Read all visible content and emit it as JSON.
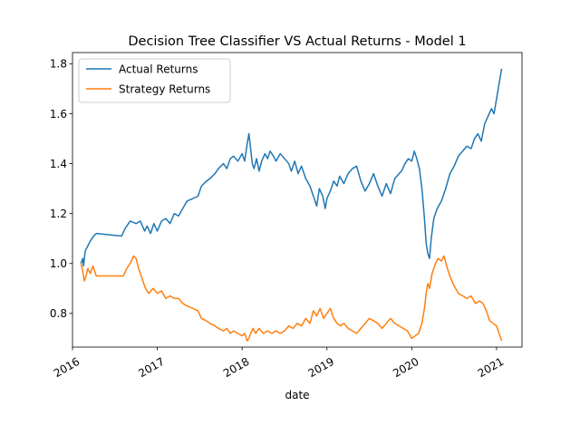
{
  "chart_data": {
    "type": "line",
    "title": "Decision Tree Classifier VS Actual Returns - Model 1",
    "xlabel": "date",
    "ylabel": "",
    "xlim": [
      2016.0,
      2021.3
    ],
    "ylim": [
      0.665,
      1.845
    ],
    "xticks": [
      {
        "value": 2016,
        "label": "2016"
      },
      {
        "value": 2017,
        "label": "2017"
      },
      {
        "value": 2018,
        "label": "2018"
      },
      {
        "value": 2019,
        "label": "2019"
      },
      {
        "value": 2020,
        "label": "2020"
      },
      {
        "value": 2021,
        "label": "2021"
      }
    ],
    "yticks": [
      {
        "value": 0.8,
        "label": "0.8"
      },
      {
        "value": 1.0,
        "label": "1.0"
      },
      {
        "value": 1.2,
        "label": "1.2"
      },
      {
        "value": 1.4,
        "label": "1.4"
      },
      {
        "value": 1.6,
        "label": "1.6"
      },
      {
        "value": 1.8,
        "label": "1.8"
      }
    ],
    "legend_position": "upper-left",
    "series": [
      {
        "name": "Actual Returns",
        "color": "#1f77b4",
        "points": [
          [
            2016.1,
            1.0
          ],
          [
            2016.12,
            1.02
          ],
          [
            2016.13,
            0.99
          ],
          [
            2016.15,
            1.05
          ],
          [
            2016.18,
            1.07
          ],
          [
            2016.21,
            1.09
          ],
          [
            2016.25,
            1.11
          ],
          [
            2016.28,
            1.12
          ],
          [
            2016.58,
            1.11
          ],
          [
            2016.62,
            1.14
          ],
          [
            2016.68,
            1.17
          ],
          [
            2016.75,
            1.16
          ],
          [
            2016.8,
            1.17
          ],
          [
            2016.85,
            1.13
          ],
          [
            2016.88,
            1.15
          ],
          [
            2016.92,
            1.12
          ],
          [
            2016.96,
            1.16
          ],
          [
            2017.0,
            1.13
          ],
          [
            2017.05,
            1.17
          ],
          [
            2017.1,
            1.18
          ],
          [
            2017.15,
            1.16
          ],
          [
            2017.2,
            1.2
          ],
          [
            2017.25,
            1.19
          ],
          [
            2017.3,
            1.22
          ],
          [
            2017.35,
            1.25
          ],
          [
            2017.42,
            1.26
          ],
          [
            2017.48,
            1.27
          ],
          [
            2017.52,
            1.31
          ],
          [
            2017.58,
            1.33
          ],
          [
            2017.62,
            1.34
          ],
          [
            2017.68,
            1.36
          ],
          [
            2017.72,
            1.38
          ],
          [
            2017.78,
            1.4
          ],
          [
            2017.82,
            1.38
          ],
          [
            2017.86,
            1.42
          ],
          [
            2017.9,
            1.43
          ],
          [
            2017.95,
            1.41
          ],
          [
            2018.0,
            1.44
          ],
          [
            2018.03,
            1.41
          ],
          [
            2018.06,
            1.48
          ],
          [
            2018.08,
            1.52
          ],
          [
            2018.1,
            1.46
          ],
          [
            2018.12,
            1.4
          ],
          [
            2018.14,
            1.38
          ],
          [
            2018.17,
            1.42
          ],
          [
            2018.2,
            1.37
          ],
          [
            2018.23,
            1.41
          ],
          [
            2018.27,
            1.44
          ],
          [
            2018.3,
            1.42
          ],
          [
            2018.33,
            1.45
          ],
          [
            2018.37,
            1.43
          ],
          [
            2018.4,
            1.41
          ],
          [
            2018.45,
            1.44
          ],
          [
            2018.5,
            1.42
          ],
          [
            2018.55,
            1.4
          ],
          [
            2018.58,
            1.37
          ],
          [
            2018.62,
            1.41
          ],
          [
            2018.66,
            1.36
          ],
          [
            2018.7,
            1.39
          ],
          [
            2018.75,
            1.34
          ],
          [
            2018.8,
            1.31
          ],
          [
            2018.84,
            1.27
          ],
          [
            2018.88,
            1.23
          ],
          [
            2018.91,
            1.3
          ],
          [
            2018.95,
            1.27
          ],
          [
            2018.98,
            1.22
          ],
          [
            2019.0,
            1.26
          ],
          [
            2019.04,
            1.29
          ],
          [
            2019.08,
            1.33
          ],
          [
            2019.12,
            1.31
          ],
          [
            2019.15,
            1.35
          ],
          [
            2019.2,
            1.32
          ],
          [
            2019.25,
            1.36
          ],
          [
            2019.3,
            1.38
          ],
          [
            2019.35,
            1.39
          ],
          [
            2019.4,
            1.33
          ],
          [
            2019.45,
            1.29
          ],
          [
            2019.5,
            1.32
          ],
          [
            2019.55,
            1.36
          ],
          [
            2019.6,
            1.31
          ],
          [
            2019.65,
            1.27
          ],
          [
            2019.7,
            1.32
          ],
          [
            2019.75,
            1.28
          ],
          [
            2019.8,
            1.34
          ],
          [
            2019.85,
            1.36
          ],
          [
            2019.88,
            1.37
          ],
          [
            2019.92,
            1.4
          ],
          [
            2019.96,
            1.42
          ],
          [
            2020.0,
            1.41
          ],
          [
            2020.03,
            1.45
          ],
          [
            2020.06,
            1.42
          ],
          [
            2020.09,
            1.38
          ],
          [
            2020.12,
            1.3
          ],
          [
            2020.15,
            1.18
          ],
          [
            2020.17,
            1.08
          ],
          [
            2020.19,
            1.04
          ],
          [
            2020.21,
            1.02
          ],
          [
            2020.23,
            1.1
          ],
          [
            2020.26,
            1.18
          ],
          [
            2020.3,
            1.22
          ],
          [
            2020.35,
            1.25
          ],
          [
            2020.4,
            1.3
          ],
          [
            2020.45,
            1.36
          ],
          [
            2020.5,
            1.39
          ],
          [
            2020.55,
            1.43
          ],
          [
            2020.6,
            1.45
          ],
          [
            2020.65,
            1.47
          ],
          [
            2020.7,
            1.46
          ],
          [
            2020.74,
            1.5
          ],
          [
            2020.78,
            1.52
          ],
          [
            2020.82,
            1.49
          ],
          [
            2020.86,
            1.56
          ],
          [
            2020.9,
            1.59
          ],
          [
            2020.94,
            1.62
          ],
          [
            2020.97,
            1.6
          ],
          [
            2021.0,
            1.66
          ],
          [
            2021.03,
            1.72
          ],
          [
            2021.06,
            1.78
          ]
        ]
      },
      {
        "name": "Strategy Returns",
        "color": "#ff7f0e",
        "points": [
          [
            2016.1,
            1.0
          ],
          [
            2016.12,
            0.97
          ],
          [
            2016.14,
            0.93
          ],
          [
            2016.16,
            0.95
          ],
          [
            2016.18,
            0.98
          ],
          [
            2016.21,
            0.96
          ],
          [
            2016.24,
            0.99
          ],
          [
            2016.28,
            0.95
          ],
          [
            2016.6,
            0.95
          ],
          [
            2016.64,
            0.98
          ],
          [
            2016.68,
            1.0
          ],
          [
            2016.72,
            1.03
          ],
          [
            2016.75,
            1.02
          ],
          [
            2016.78,
            0.98
          ],
          [
            2016.82,
            0.94
          ],
          [
            2016.86,
            0.9
          ],
          [
            2016.9,
            0.88
          ],
          [
            2016.95,
            0.9
          ],
          [
            2017.0,
            0.88
          ],
          [
            2017.05,
            0.89
          ],
          [
            2017.1,
            0.86
          ],
          [
            2017.15,
            0.87
          ],
          [
            2017.2,
            0.86
          ],
          [
            2017.25,
            0.86
          ],
          [
            2017.3,
            0.84
          ],
          [
            2017.35,
            0.83
          ],
          [
            2017.42,
            0.82
          ],
          [
            2017.48,
            0.81
          ],
          [
            2017.52,
            0.78
          ],
          [
            2017.58,
            0.77
          ],
          [
            2017.62,
            0.76
          ],
          [
            2017.68,
            0.75
          ],
          [
            2017.72,
            0.74
          ],
          [
            2017.78,
            0.73
          ],
          [
            2017.82,
            0.74
          ],
          [
            2017.86,
            0.72
          ],
          [
            2017.9,
            0.73
          ],
          [
            2017.95,
            0.72
          ],
          [
            2018.0,
            0.71
          ],
          [
            2018.03,
            0.72
          ],
          [
            2018.06,
            0.69
          ],
          [
            2018.08,
            0.7
          ],
          [
            2018.1,
            0.72
          ],
          [
            2018.13,
            0.74
          ],
          [
            2018.16,
            0.72
          ],
          [
            2018.2,
            0.74
          ],
          [
            2018.25,
            0.72
          ],
          [
            2018.3,
            0.73
          ],
          [
            2018.35,
            0.72
          ],
          [
            2018.4,
            0.73
          ],
          [
            2018.45,
            0.72
          ],
          [
            2018.5,
            0.73
          ],
          [
            2018.55,
            0.75
          ],
          [
            2018.6,
            0.74
          ],
          [
            2018.65,
            0.76
          ],
          [
            2018.7,
            0.75
          ],
          [
            2018.75,
            0.78
          ],
          [
            2018.8,
            0.76
          ],
          [
            2018.84,
            0.81
          ],
          [
            2018.88,
            0.79
          ],
          [
            2018.92,
            0.82
          ],
          [
            2018.96,
            0.78
          ],
          [
            2019.0,
            0.8
          ],
          [
            2019.04,
            0.82
          ],
          [
            2019.08,
            0.78
          ],
          [
            2019.12,
            0.76
          ],
          [
            2019.16,
            0.75
          ],
          [
            2019.2,
            0.76
          ],
          [
            2019.25,
            0.74
          ],
          [
            2019.3,
            0.73
          ],
          [
            2019.35,
            0.72
          ],
          [
            2019.4,
            0.74
          ],
          [
            2019.45,
            0.76
          ],
          [
            2019.5,
            0.78
          ],
          [
            2019.55,
            0.77
          ],
          [
            2019.6,
            0.76
          ],
          [
            2019.65,
            0.74
          ],
          [
            2019.7,
            0.76
          ],
          [
            2019.75,
            0.78
          ],
          [
            2019.8,
            0.76
          ],
          [
            2019.85,
            0.75
          ],
          [
            2019.9,
            0.74
          ],
          [
            2019.95,
            0.73
          ],
          [
            2020.0,
            0.7
          ],
          [
            2020.04,
            0.71
          ],
          [
            2020.08,
            0.72
          ],
          [
            2020.12,
            0.76
          ],
          [
            2020.15,
            0.82
          ],
          [
            2020.17,
            0.88
          ],
          [
            2020.19,
            0.92
          ],
          [
            2020.21,
            0.9
          ],
          [
            2020.24,
            0.96
          ],
          [
            2020.28,
            1.0
          ],
          [
            2020.31,
            1.02
          ],
          [
            2020.35,
            1.01
          ],
          [
            2020.38,
            1.03
          ],
          [
            2020.42,
            0.98
          ],
          [
            2020.46,
            0.94
          ],
          [
            2020.5,
            0.91
          ],
          [
            2020.55,
            0.88
          ],
          [
            2020.6,
            0.87
          ],
          [
            2020.65,
            0.86
          ],
          [
            2020.7,
            0.87
          ],
          [
            2020.75,
            0.84
          ],
          [
            2020.8,
            0.85
          ],
          [
            2020.84,
            0.84
          ],
          [
            2020.88,
            0.81
          ],
          [
            2020.92,
            0.77
          ],
          [
            2020.96,
            0.76
          ],
          [
            2021.0,
            0.75
          ],
          [
            2021.03,
            0.72
          ],
          [
            2021.06,
            0.69
          ]
        ]
      }
    ]
  }
}
